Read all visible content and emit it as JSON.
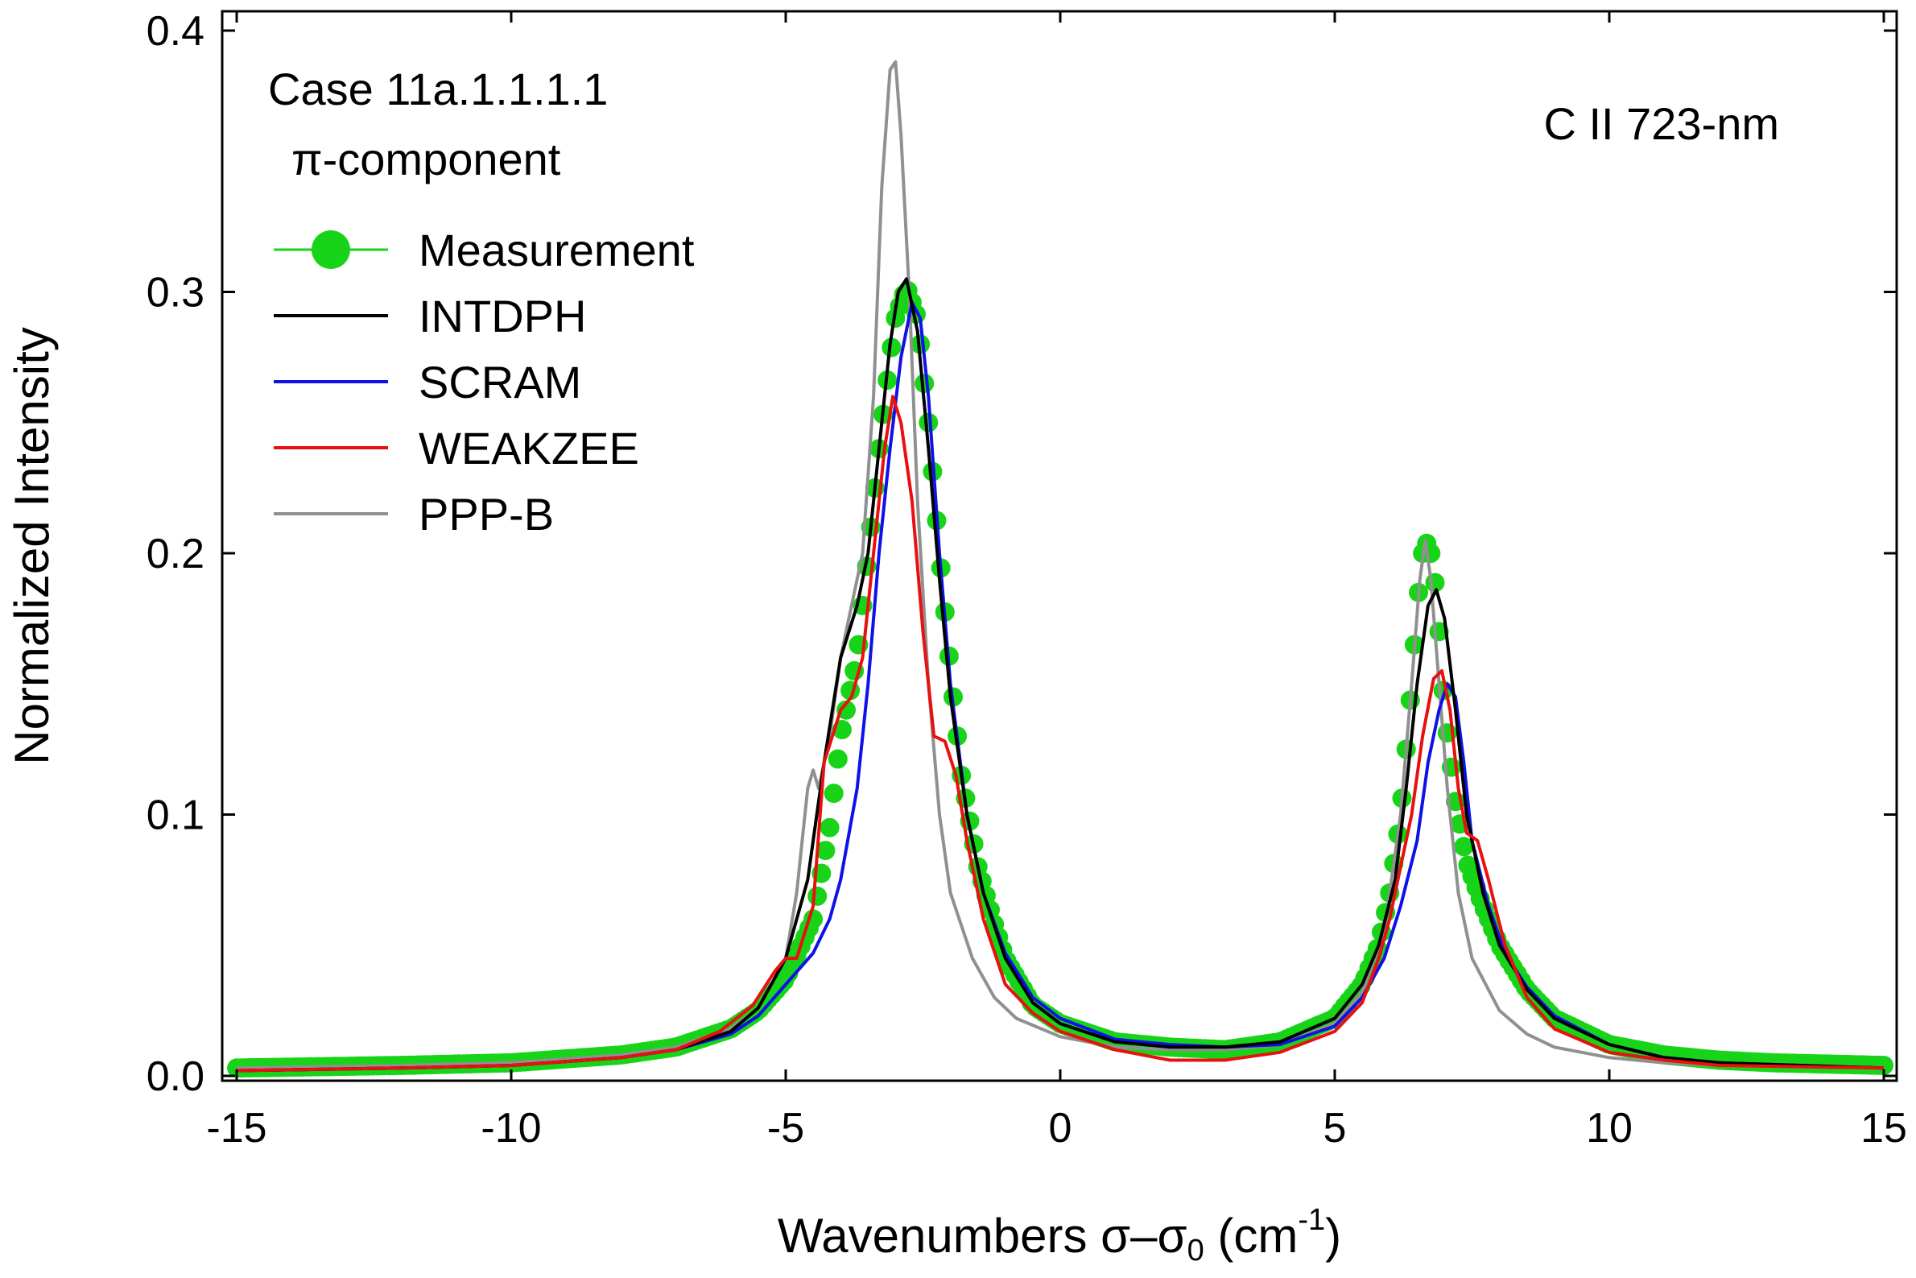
{
  "chart_data": {
    "type": "line",
    "title": "",
    "annotations": {
      "case": "Case 11a.1.1.1.1",
      "component": "π-component",
      "line_id": "C II 723-nm"
    },
    "xlabel": {
      "prefix": "Wavenumbers ",
      "sigma": "σ–σ",
      "sub": "0",
      "unit_open": " (cm",
      "sup": "-1",
      "unit_close": ")"
    },
    "ylabel": "Normalized Intensity",
    "xlim": [
      -15,
      15
    ],
    "ylim": [
      0,
      0.4
    ],
    "xticks": [
      -15,
      -10,
      -5,
      0,
      5,
      10,
      15
    ],
    "xtick_labels": [
      "-15",
      "-10",
      "-5",
      "0",
      "5",
      "10",
      "15"
    ],
    "yticks": [
      0,
      0.1,
      0.2,
      0.3,
      0.4
    ],
    "ytick_labels": [
      "0.0",
      "0.1",
      "0.2",
      "0.3",
      "0.4"
    ],
    "grid": false,
    "legend_position": "top-left",
    "series": [
      {
        "name": "Measurement",
        "color": "#18d418",
        "marker": "circle",
        "points": [
          [
            -15,
            0.003
          ],
          [
            -12,
            0.004
          ],
          [
            -10,
            0.005
          ],
          [
            -8,
            0.008
          ],
          [
            -7,
            0.011
          ],
          [
            -6,
            0.018
          ],
          [
            -5.5,
            0.025
          ],
          [
            -5,
            0.037
          ],
          [
            -4.5,
            0.06
          ],
          [
            -4.2,
            0.095
          ],
          [
            -4,
            0.13
          ],
          [
            -3.7,
            0.16
          ],
          [
            -3.5,
            0.2
          ],
          [
            -3.3,
            0.24
          ],
          [
            -3.1,
            0.275
          ],
          [
            -3.0,
            0.29
          ],
          [
            -2.8,
            0.302
          ],
          [
            -2.6,
            0.29
          ],
          [
            -2.4,
            0.25
          ],
          [
            -2.2,
            0.2
          ],
          [
            -2.0,
            0.155
          ],
          [
            -1.8,
            0.115
          ],
          [
            -1.5,
            0.08
          ],
          [
            -1.2,
            0.058
          ],
          [
            -1.0,
            0.045
          ],
          [
            -0.5,
            0.027
          ],
          [
            0,
            0.02
          ],
          [
            1,
            0.013
          ],
          [
            2,
            0.011
          ],
          [
            3,
            0.01
          ],
          [
            4,
            0.013
          ],
          [
            5,
            0.022
          ],
          [
            5.5,
            0.035
          ],
          [
            5.8,
            0.05
          ],
          [
            6.0,
            0.07
          ],
          [
            6.2,
            0.1
          ],
          [
            6.4,
            0.15
          ],
          [
            6.5,
            0.18
          ],
          [
            6.6,
            0.2
          ],
          [
            6.7,
            0.205
          ],
          [
            6.8,
            0.195
          ],
          [
            6.9,
            0.17
          ],
          [
            7.0,
            0.14
          ],
          [
            7.2,
            0.105
          ],
          [
            7.4,
            0.082
          ],
          [
            7.7,
            0.065
          ],
          [
            8.0,
            0.05
          ],
          [
            8.5,
            0.033
          ],
          [
            9,
            0.022
          ],
          [
            10,
            0.012
          ],
          [
            11,
            0.008
          ],
          [
            12,
            0.006
          ],
          [
            13,
            0.005
          ],
          [
            15,
            0.004
          ]
        ]
      },
      {
        "name": "INTDPH",
        "color": "#000000",
        "points": [
          [
            -15,
            0.002
          ],
          [
            -12,
            0.003
          ],
          [
            -10,
            0.004
          ],
          [
            -8,
            0.007
          ],
          [
            -7,
            0.01
          ],
          [
            -6,
            0.017
          ],
          [
            -5.5,
            0.026
          ],
          [
            -5,
            0.045
          ],
          [
            -4.6,
            0.075
          ],
          [
            -4.3,
            0.12
          ],
          [
            -4.0,
            0.16
          ],
          [
            -3.7,
            0.18
          ],
          [
            -3.5,
            0.2
          ],
          [
            -3.3,
            0.24
          ],
          [
            -3.1,
            0.28
          ],
          [
            -2.95,
            0.3
          ],
          [
            -2.8,
            0.305
          ],
          [
            -2.6,
            0.285
          ],
          [
            -2.4,
            0.24
          ],
          [
            -2.2,
            0.19
          ],
          [
            -2.0,
            0.145
          ],
          [
            -1.7,
            0.1
          ],
          [
            -1.4,
            0.07
          ],
          [
            -1.0,
            0.045
          ],
          [
            -0.5,
            0.028
          ],
          [
            0,
            0.02
          ],
          [
            1,
            0.013
          ],
          [
            2,
            0.011
          ],
          [
            3,
            0.011
          ],
          [
            4,
            0.013
          ],
          [
            5,
            0.022
          ],
          [
            5.5,
            0.035
          ],
          [
            5.8,
            0.05
          ],
          [
            6.1,
            0.075
          ],
          [
            6.3,
            0.11
          ],
          [
            6.5,
            0.15
          ],
          [
            6.7,
            0.18
          ],
          [
            6.85,
            0.186
          ],
          [
            7.0,
            0.175
          ],
          [
            7.2,
            0.14
          ],
          [
            7.4,
            0.1
          ],
          [
            7.7,
            0.07
          ],
          [
            8.0,
            0.05
          ],
          [
            8.5,
            0.033
          ],
          [
            9,
            0.022
          ],
          [
            10,
            0.012
          ],
          [
            11,
            0.007
          ],
          [
            12,
            0.005
          ],
          [
            15,
            0.003
          ]
        ]
      },
      {
        "name": "SCRAM",
        "color": "#1010e8",
        "points": [
          [
            -15,
            0.002
          ],
          [
            -12,
            0.003
          ],
          [
            -10,
            0.004
          ],
          [
            -8,
            0.007
          ],
          [
            -7,
            0.01
          ],
          [
            -6,
            0.016
          ],
          [
            -5.5,
            0.023
          ],
          [
            -5,
            0.035
          ],
          [
            -4.5,
            0.047
          ],
          [
            -4.2,
            0.06
          ],
          [
            -4.0,
            0.075
          ],
          [
            -3.7,
            0.11
          ],
          [
            -3.5,
            0.15
          ],
          [
            -3.3,
            0.2
          ],
          [
            -3.1,
            0.24
          ],
          [
            -2.9,
            0.275
          ],
          [
            -2.7,
            0.296
          ],
          [
            -2.55,
            0.29
          ],
          [
            -2.4,
            0.26
          ],
          [
            -2.2,
            0.2
          ],
          [
            -2.0,
            0.15
          ],
          [
            -1.7,
            0.1
          ],
          [
            -1.4,
            0.07
          ],
          [
            -1.0,
            0.047
          ],
          [
            -0.5,
            0.03
          ],
          [
            0,
            0.022
          ],
          [
            1,
            0.014
          ],
          [
            2,
            0.012
          ],
          [
            3,
            0.011
          ],
          [
            4,
            0.012
          ],
          [
            5,
            0.019
          ],
          [
            5.5,
            0.03
          ],
          [
            5.9,
            0.045
          ],
          [
            6.2,
            0.065
          ],
          [
            6.5,
            0.09
          ],
          [
            6.7,
            0.12
          ],
          [
            6.9,
            0.14
          ],
          [
            7.05,
            0.15
          ],
          [
            7.2,
            0.145
          ],
          [
            7.35,
            0.12
          ],
          [
            7.5,
            0.09
          ],
          [
            7.8,
            0.065
          ],
          [
            8.1,
            0.047
          ],
          [
            8.5,
            0.034
          ],
          [
            9,
            0.023
          ],
          [
            10,
            0.012
          ],
          [
            11,
            0.007
          ],
          [
            12,
            0.005
          ],
          [
            15,
            0.003
          ]
        ]
      },
      {
        "name": "WEAKZEE",
        "color": "#e81010",
        "points": [
          [
            -15,
            0.002
          ],
          [
            -12,
            0.003
          ],
          [
            -10,
            0.004
          ],
          [
            -8,
            0.007
          ],
          [
            -7,
            0.01
          ],
          [
            -6.2,
            0.017
          ],
          [
            -5.6,
            0.027
          ],
          [
            -5.2,
            0.04
          ],
          [
            -5.0,
            0.045
          ],
          [
            -4.8,
            0.045
          ],
          [
            -4.5,
            0.065
          ],
          [
            -4.3,
            0.12
          ],
          [
            -4.0,
            0.14
          ],
          [
            -3.8,
            0.145
          ],
          [
            -3.6,
            0.16
          ],
          [
            -3.4,
            0.2
          ],
          [
            -3.2,
            0.24
          ],
          [
            -3.05,
            0.26
          ],
          [
            -2.9,
            0.25
          ],
          [
            -2.7,
            0.22
          ],
          [
            -2.5,
            0.17
          ],
          [
            -2.3,
            0.13
          ],
          [
            -2.1,
            0.128
          ],
          [
            -1.9,
            0.115
          ],
          [
            -1.7,
            0.09
          ],
          [
            -1.4,
            0.06
          ],
          [
            -1.0,
            0.035
          ],
          [
            -0.5,
            0.024
          ],
          [
            0,
            0.017
          ],
          [
            1,
            0.01
          ],
          [
            2,
            0.006
          ],
          [
            3,
            0.006
          ],
          [
            4,
            0.009
          ],
          [
            5,
            0.017
          ],
          [
            5.5,
            0.028
          ],
          [
            5.8,
            0.045
          ],
          [
            6.0,
            0.06
          ],
          [
            6.2,
            0.08
          ],
          [
            6.4,
            0.1
          ],
          [
            6.6,
            0.13
          ],
          [
            6.8,
            0.152
          ],
          [
            6.95,
            0.155
          ],
          [
            7.1,
            0.14
          ],
          [
            7.25,
            0.11
          ],
          [
            7.4,
            0.093
          ],
          [
            7.6,
            0.09
          ],
          [
            7.8,
            0.075
          ],
          [
            8.1,
            0.05
          ],
          [
            8.5,
            0.03
          ],
          [
            9,
            0.018
          ],
          [
            10,
            0.009
          ],
          [
            11,
            0.006
          ],
          [
            12,
            0.004
          ],
          [
            15,
            0.003
          ]
        ]
      },
      {
        "name": "PPP-B",
        "color": "#909090",
        "points": [
          [
            -15,
            0.003
          ],
          [
            -12,
            0.004
          ],
          [
            -10,
            0.005
          ],
          [
            -8,
            0.008
          ],
          [
            -7,
            0.011
          ],
          [
            -6,
            0.018
          ],
          [
            -5.5,
            0.026
          ],
          [
            -5.0,
            0.045
          ],
          [
            -4.8,
            0.07
          ],
          [
            -4.6,
            0.11
          ],
          [
            -4.5,
            0.117
          ],
          [
            -4.4,
            0.11
          ],
          [
            -4.2,
            0.13
          ],
          [
            -4.0,
            0.16
          ],
          [
            -3.8,
            0.18
          ],
          [
            -3.6,
            0.2
          ],
          [
            -3.4,
            0.26
          ],
          [
            -3.25,
            0.34
          ],
          [
            -3.1,
            0.385
          ],
          [
            -3.0,
            0.388
          ],
          [
            -2.9,
            0.36
          ],
          [
            -2.75,
            0.3
          ],
          [
            -2.6,
            0.22
          ],
          [
            -2.4,
            0.15
          ],
          [
            -2.2,
            0.1
          ],
          [
            -2.0,
            0.07
          ],
          [
            -1.6,
            0.045
          ],
          [
            -1.2,
            0.03
          ],
          [
            -0.8,
            0.022
          ],
          [
            0,
            0.015
          ],
          [
            1,
            0.011
          ],
          [
            2,
            0.01
          ],
          [
            3,
            0.01
          ],
          [
            4,
            0.012
          ],
          [
            5,
            0.02
          ],
          [
            5.5,
            0.032
          ],
          [
            5.9,
            0.055
          ],
          [
            6.2,
            0.1
          ],
          [
            6.4,
            0.15
          ],
          [
            6.55,
            0.19
          ],
          [
            6.65,
            0.205
          ],
          [
            6.75,
            0.19
          ],
          [
            6.9,
            0.15
          ],
          [
            7.05,
            0.11
          ],
          [
            7.25,
            0.07
          ],
          [
            7.5,
            0.045
          ],
          [
            8.0,
            0.025
          ],
          [
            8.5,
            0.016
          ],
          [
            9,
            0.011
          ],
          [
            10,
            0.007
          ],
          [
            11,
            0.005
          ],
          [
            12,
            0.004
          ],
          [
            15,
            0.003
          ]
        ]
      }
    ]
  }
}
